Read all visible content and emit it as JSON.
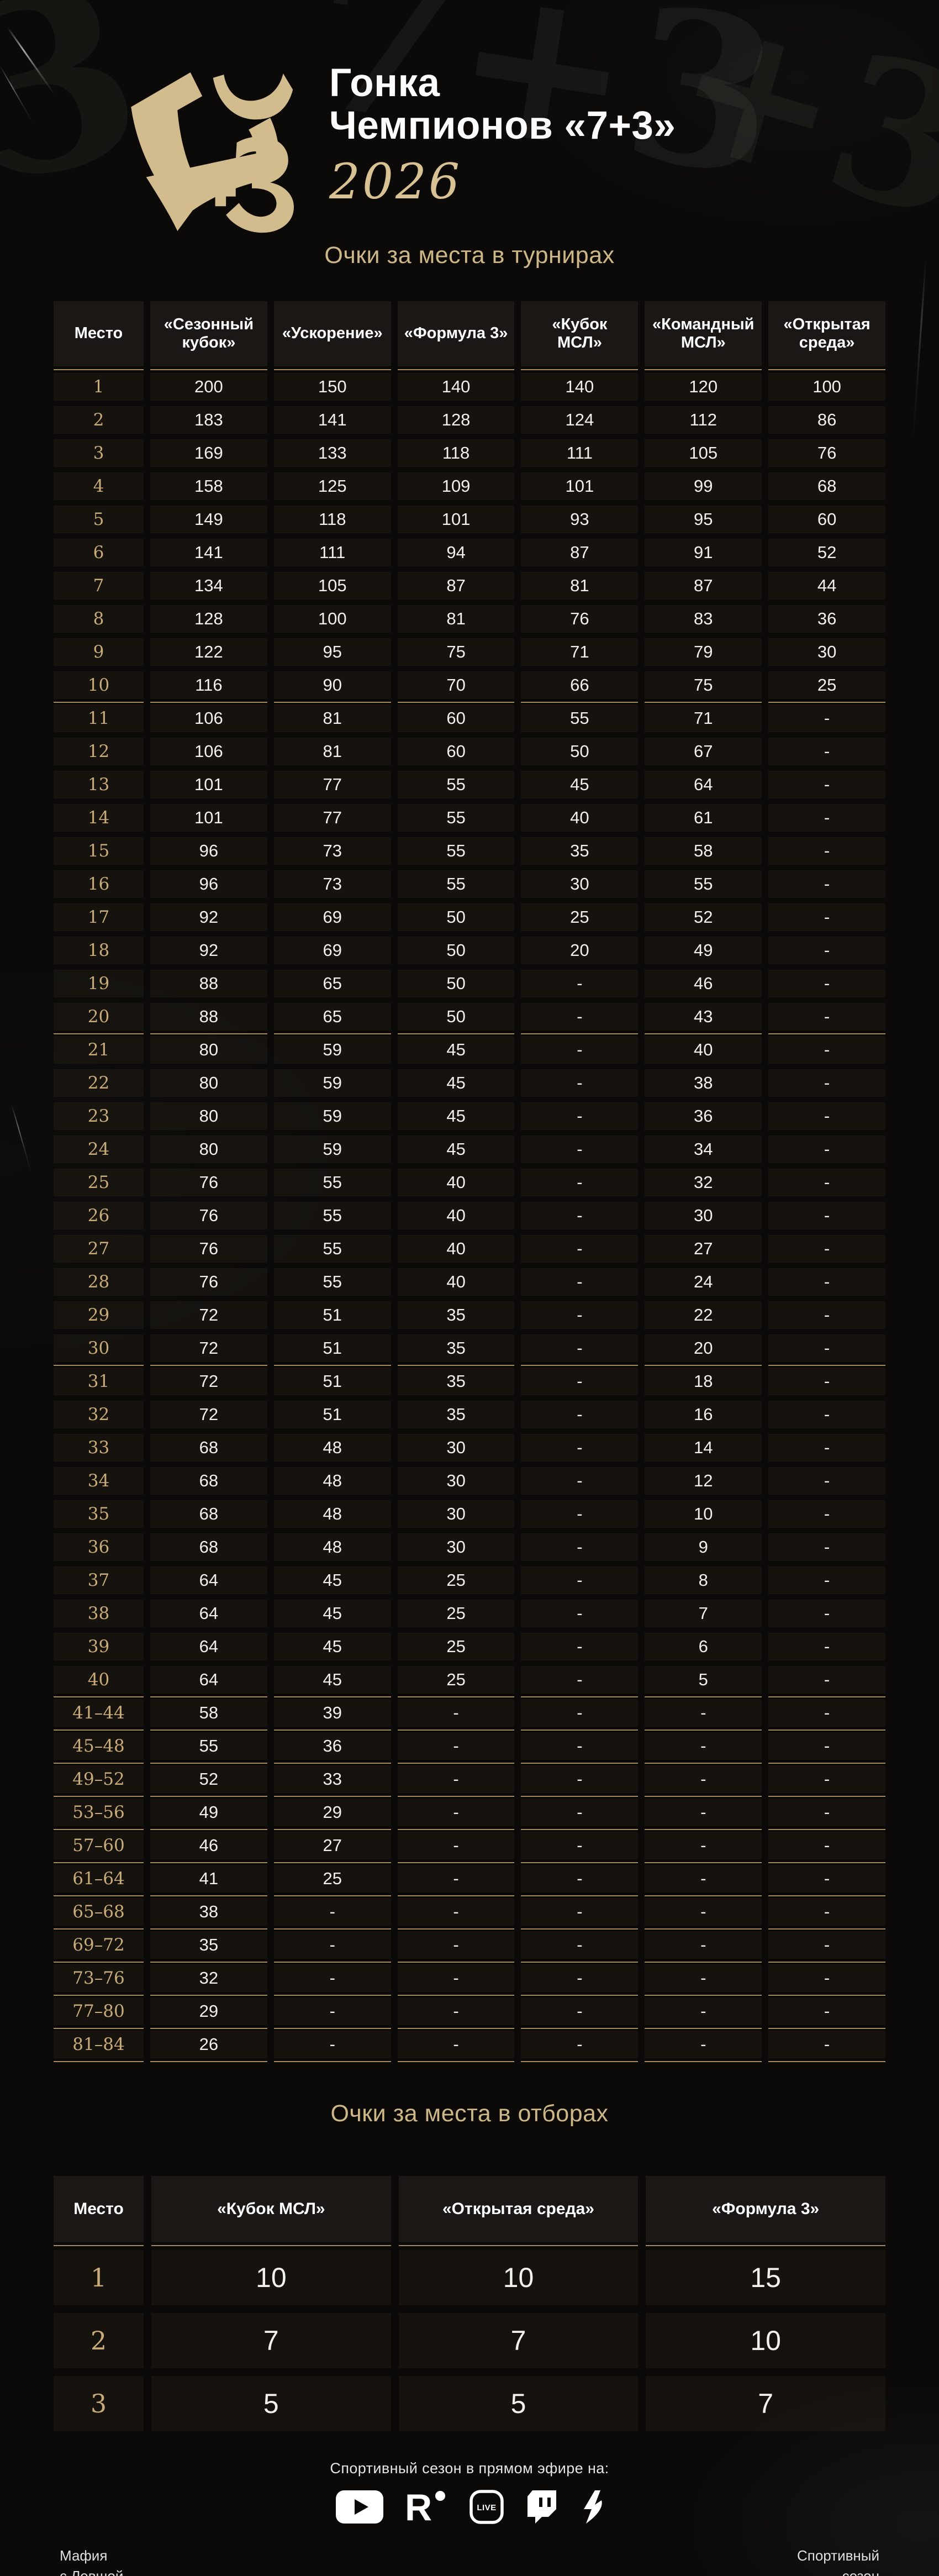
{
  "header": {
    "title_line1": "Гонка",
    "title_line2": "Чемпионов «7+3»",
    "year": "2026",
    "logo_name": "7+3 monogram emblem"
  },
  "colors": {
    "background": "#0b0a08",
    "panel": "#16130f",
    "panel_header": "#1a1714",
    "gold_accent": "#c8ab78",
    "gold_bright": "#d8c192",
    "gold_heading": "#cdb787",
    "gold_divider": "#a28b5d",
    "text_white": "#f2f1ee"
  },
  "decor": {
    "wm1": "З",
    "wm2": "7+3",
    "wm3": "+3"
  },
  "tournaments_table": {
    "heading": "Очки за места в турнирах",
    "columns": [
      "Место",
      "«Сезонный кубок»",
      "«Ускорение»",
      "«Формула 3»",
      "«Кубок МСЛ»",
      "«Командный МСЛ»",
      "«Открытая среда»"
    ],
    "rows": [
      {
        "place": "1",
        "values": [
          "200",
          "150",
          "140",
          "140",
          "120",
          "100"
        ],
        "u": false
      },
      {
        "place": "2",
        "values": [
          "183",
          "141",
          "128",
          "124",
          "112",
          "86"
        ],
        "u": false
      },
      {
        "place": "3",
        "values": [
          "169",
          "133",
          "118",
          "111",
          "105",
          "76"
        ],
        "u": false
      },
      {
        "place": "4",
        "values": [
          "158",
          "125",
          "109",
          "101",
          "99",
          "68"
        ],
        "u": false
      },
      {
        "place": "5",
        "values": [
          "149",
          "118",
          "101",
          "93",
          "95",
          "60"
        ],
        "u": false
      },
      {
        "place": "6",
        "values": [
          "141",
          "111",
          "94",
          "87",
          "91",
          "52"
        ],
        "u": false
      },
      {
        "place": "7",
        "values": [
          "134",
          "105",
          "87",
          "81",
          "87",
          "44"
        ],
        "u": false
      },
      {
        "place": "8",
        "values": [
          "128",
          "100",
          "81",
          "76",
          "83",
          "36"
        ],
        "u": false
      },
      {
        "place": "9",
        "values": [
          "122",
          "95",
          "75",
          "71",
          "79",
          "30"
        ],
        "u": false
      },
      {
        "place": "10",
        "values": [
          "116",
          "90",
          "70",
          "66",
          "75",
          "25"
        ],
        "u": true
      },
      {
        "place": "11",
        "values": [
          "106",
          "81",
          "60",
          "55",
          "71",
          "-"
        ],
        "u": false
      },
      {
        "place": "12",
        "values": [
          "106",
          "81",
          "60",
          "50",
          "67",
          "-"
        ],
        "u": false
      },
      {
        "place": "13",
        "values": [
          "101",
          "77",
          "55",
          "45",
          "64",
          "-"
        ],
        "u": false
      },
      {
        "place": "14",
        "values": [
          "101",
          "77",
          "55",
          "40",
          "61",
          "-"
        ],
        "u": false
      },
      {
        "place": "15",
        "values": [
          "96",
          "73",
          "55",
          "35",
          "58",
          "-"
        ],
        "u": false
      },
      {
        "place": "16",
        "values": [
          "96",
          "73",
          "55",
          "30",
          "55",
          "-"
        ],
        "u": false
      },
      {
        "place": "17",
        "values": [
          "92",
          "69",
          "50",
          "25",
          "52",
          "-"
        ],
        "u": false
      },
      {
        "place": "18",
        "values": [
          "92",
          "69",
          "50",
          "20",
          "49",
          "-"
        ],
        "u": false
      },
      {
        "place": "19",
        "values": [
          "88",
          "65",
          "50",
          "-",
          "46",
          "-"
        ],
        "u": false
      },
      {
        "place": "20",
        "values": [
          "88",
          "65",
          "50",
          "-",
          "43",
          "-"
        ],
        "u": true
      },
      {
        "place": "21",
        "values": [
          "80",
          "59",
          "45",
          "-",
          "40",
          "-"
        ],
        "u": false
      },
      {
        "place": "22",
        "values": [
          "80",
          "59",
          "45",
          "-",
          "38",
          "-"
        ],
        "u": false
      },
      {
        "place": "23",
        "values": [
          "80",
          "59",
          "45",
          "-",
          "36",
          "-"
        ],
        "u": false
      },
      {
        "place": "24",
        "values": [
          "80",
          "59",
          "45",
          "-",
          "34",
          "-"
        ],
        "u": false
      },
      {
        "place": "25",
        "values": [
          "76",
          "55",
          "40",
          "-",
          "32",
          "-"
        ],
        "u": false
      },
      {
        "place": "26",
        "values": [
          "76",
          "55",
          "40",
          "-",
          "30",
          "-"
        ],
        "u": false
      },
      {
        "place": "27",
        "values": [
          "76",
          "55",
          "40",
          "-",
          "27",
          "-"
        ],
        "u": false
      },
      {
        "place": "28",
        "values": [
          "76",
          "55",
          "40",
          "-",
          "24",
          "-"
        ],
        "u": false
      },
      {
        "place": "29",
        "values": [
          "72",
          "51",
          "35",
          "-",
          "22",
          "-"
        ],
        "u": false
      },
      {
        "place": "30",
        "values": [
          "72",
          "51",
          "35",
          "-",
          "20",
          "-"
        ],
        "u": true
      },
      {
        "place": "31",
        "values": [
          "72",
          "51",
          "35",
          "-",
          "18",
          "-"
        ],
        "u": false
      },
      {
        "place": "32",
        "values": [
          "72",
          "51",
          "35",
          "-",
          "16",
          "-"
        ],
        "u": false
      },
      {
        "place": "33",
        "values": [
          "68",
          "48",
          "30",
          "-",
          "14",
          "-"
        ],
        "u": false
      },
      {
        "place": "34",
        "values": [
          "68",
          "48",
          "30",
          "-",
          "12",
          "-"
        ],
        "u": false
      },
      {
        "place": "35",
        "values": [
          "68",
          "48",
          "30",
          "-",
          "10",
          "-"
        ],
        "u": false
      },
      {
        "place": "36",
        "values": [
          "68",
          "48",
          "30",
          "-",
          "9",
          "-"
        ],
        "u": false
      },
      {
        "place": "37",
        "values": [
          "64",
          "45",
          "25",
          "-",
          "8",
          "-"
        ],
        "u": false
      },
      {
        "place": "38",
        "values": [
          "64",
          "45",
          "25",
          "-",
          "7",
          "-"
        ],
        "u": false
      },
      {
        "place": "39",
        "values": [
          "64",
          "45",
          "25",
          "-",
          "6",
          "-"
        ],
        "u": false
      },
      {
        "place": "40",
        "values": [
          "64",
          "45",
          "25",
          "-",
          "5",
          "-"
        ],
        "u": true
      },
      {
        "place": "41–44",
        "values": [
          "58",
          "39",
          "-",
          "-",
          "-",
          "-"
        ],
        "u": true
      },
      {
        "place": "45–48",
        "values": [
          "55",
          "36",
          "-",
          "-",
          "-",
          "-"
        ],
        "u": true
      },
      {
        "place": "49–52",
        "values": [
          "52",
          "33",
          "-",
          "-",
          "-",
          "-"
        ],
        "u": true
      },
      {
        "place": "53–56",
        "values": [
          "49",
          "29",
          "-",
          "-",
          "-",
          "-"
        ],
        "u": true
      },
      {
        "place": "57–60",
        "values": [
          "46",
          "27",
          "-",
          "-",
          "-",
          "-"
        ],
        "u": true
      },
      {
        "place": "61–64",
        "values": [
          "41",
          "25",
          "-",
          "-",
          "-",
          "-"
        ],
        "u": true
      },
      {
        "place": "65–68",
        "values": [
          "38",
          "-",
          "-",
          "-",
          "-",
          "-"
        ],
        "u": true
      },
      {
        "place": "69–72",
        "values": [
          "35",
          "-",
          "-",
          "-",
          "-",
          "-"
        ],
        "u": true
      },
      {
        "place": "73–76",
        "values": [
          "32",
          "-",
          "-",
          "-",
          "-",
          "-"
        ],
        "u": true
      },
      {
        "place": "77–80",
        "values": [
          "29",
          "-",
          "-",
          "-",
          "-",
          "-"
        ],
        "u": true
      },
      {
        "place": "81–84",
        "values": [
          "26",
          "-",
          "-",
          "-",
          "-",
          "-"
        ],
        "u": true
      }
    ]
  },
  "qualifiers_table": {
    "heading": "Очки за места в отборах",
    "columns": [
      "Место",
      "«Кубок МСЛ»",
      "«Открытая среда»",
      "«Формула 3»"
    ],
    "rows": [
      {
        "place": "1",
        "values": [
          "10",
          "10",
          "15"
        ],
        "u": false
      },
      {
        "place": "2",
        "values": [
          "7",
          "7",
          "10"
        ],
        "u": false
      },
      {
        "place": "3",
        "values": [
          "5",
          "5",
          "7"
        ],
        "u": false
      }
    ]
  },
  "footer": {
    "broadcast_label": "Спортивный сезон в прямом эфире на:",
    "icons": [
      "youtube",
      "rutube",
      "vk-video-live",
      "twitch",
      "boosty"
    ],
    "left_line1": "Мафия",
    "left_line2": "с Левшой",
    "right_line1": "Спортивный",
    "right_line2": "сезон"
  }
}
